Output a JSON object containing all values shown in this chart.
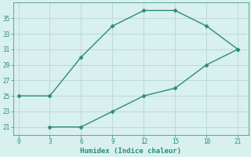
{
  "xlabel": "Humidex (Indice chaleur)",
  "line1_x": [
    0,
    3,
    6,
    9,
    12,
    15,
    18,
    21
  ],
  "line1_y": [
    25,
    25,
    30,
    34,
    36,
    36,
    34,
    31
  ],
  "line2_x": [
    3,
    6,
    9,
    12,
    15,
    18,
    21
  ],
  "line2_y": [
    21,
    21,
    23,
    25,
    26,
    29,
    31
  ],
  "xlim": [
    -0.5,
    22
  ],
  "ylim": [
    20,
    37
  ],
  "xticks": [
    0,
    3,
    6,
    9,
    12,
    15,
    18,
    21
  ],
  "yticks": [
    21,
    23,
    25,
    27,
    29,
    31,
    33,
    35
  ],
  "line_color": "#2d8b7a",
  "bg_color": "#d8f0ee",
  "grid_color": "#b8d8d4",
  "marker": "D",
  "marker_size": 2.5,
  "line_width": 1.0
}
